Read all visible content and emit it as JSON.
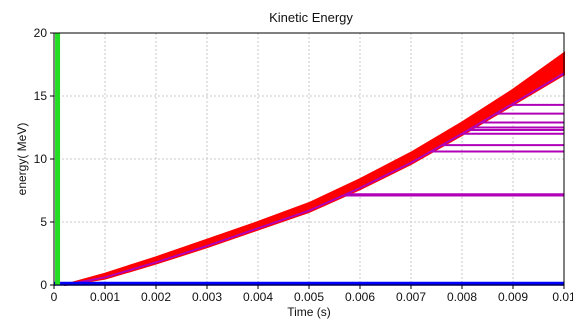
{
  "chart_data": {
    "type": "line",
    "title": "Kinetic Energy",
    "xlabel": "Time (s)",
    "ylabel": "energy( MeV)",
    "xlim": [
      0,
      0.01
    ],
    "ylim": [
      0,
      20
    ],
    "grid": true,
    "x_ticks": [
      "0",
      "0.001",
      "0.002",
      "0.003",
      "0.004",
      "0.005",
      "0.006",
      "0.007",
      "0.008",
      "0.009",
      "0.01"
    ],
    "y_ticks": [
      "0",
      "5",
      "10",
      "15",
      "20"
    ],
    "colors": {
      "red": "#ff0000",
      "magenta": "#b000b8",
      "green": "#22dd22",
      "blue": "#0000ff",
      "grid": "#c8c8c8"
    },
    "red_band": {
      "x": [
        0.0002,
        0.001,
        0.002,
        0.003,
        0.004,
        0.005,
        0.006,
        0.007,
        0.008,
        0.009,
        0.01
      ],
      "lower": [
        0,
        0.5,
        1.7,
        3.0,
        4.4,
        5.8,
        7.6,
        9.6,
        11.9,
        14.3,
        16.7
      ],
      "upper": [
        0,
        0.9,
        2.2,
        3.6,
        5.0,
        6.5,
        8.4,
        10.5,
        12.9,
        15.5,
        18.4
      ]
    },
    "magenta_curve": {
      "x": [
        0.0002,
        0.001,
        0.002,
        0.003,
        0.004,
        0.005,
        0.006,
        0.007,
        0.008,
        0.009,
        0.01
      ],
      "y": [
        0,
        0.6,
        1.8,
        3.1,
        4.5,
        5.9,
        7.7,
        9.7,
        12.0,
        14.4,
        16.8
      ]
    },
    "magenta_plateaus": [
      7.1,
      7.2,
      10.6,
      11.1,
      12.0,
      12.3,
      12.5,
      12.9,
      13.6,
      14.3,
      16.7
    ],
    "green_line": {
      "x": 7e-05,
      "y": [
        0,
        20
      ]
    },
    "blue_line": {
      "y": 0.1,
      "x": [
        0,
        0.01
      ]
    }
  }
}
